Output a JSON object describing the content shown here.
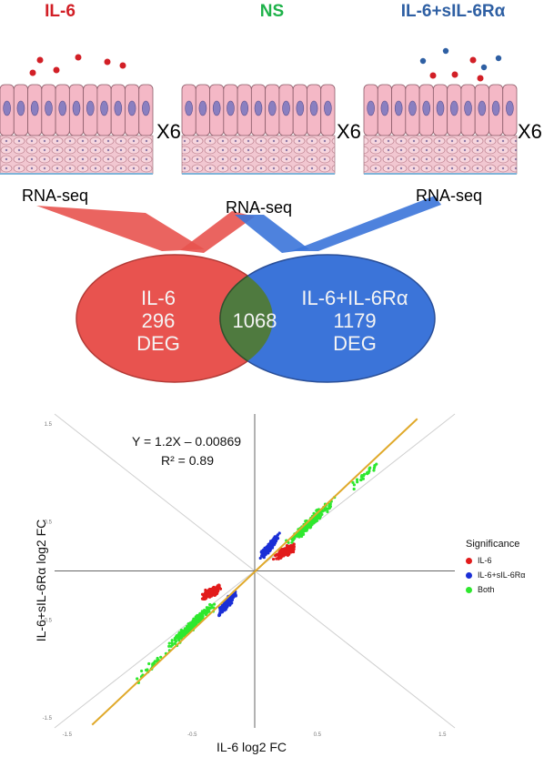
{
  "titles": {
    "left": "IL-6",
    "middle": "NS",
    "right": "IL-6+sIL-6Rα"
  },
  "multiplier": [
    "X6",
    "X6",
    "X6"
  ],
  "rnaseq": [
    "RNA-seq",
    "RNA-seq",
    "RNA-seq"
  ],
  "venn": {
    "left_lines": [
      "IL-6",
      "296",
      "DEG"
    ],
    "overlap": "1068",
    "right_lines": [
      "IL-6+IL-6Rα",
      "1179",
      "DEG"
    ]
  },
  "colors": {
    "il6": "#d21f26",
    "ns": "#1fb24a",
    "il6_sil6ra": "#2e5fa3",
    "venn_left": "#e8534f",
    "venn_right": "#3b74d9",
    "venn_overlap": "#4f7a3f",
    "fit_line": "#e0a92a"
  },
  "chart_data": {
    "type": "scatter",
    "xlabel": "IL-6 log2 FC",
    "ylabel": "IL-6+sIL-6Rα log2 FC",
    "x_ticks": [
      "-1.5",
      "-0.5",
      "0.5",
      "1.5"
    ],
    "y_ticks": [
      "1.5",
      "0.5",
      "-0.5",
      "-1.5"
    ],
    "xlim": [
      -1.6,
      1.6
    ],
    "ylim": [
      -1.6,
      1.6
    ],
    "equation": "Y = 1.2X – 0.00869",
    "r2": "R² = 0.89",
    "legend_title": "Significance",
    "series": [
      {
        "name": "IL-6",
        "color": "#e21b1b",
        "cluster_centers": [
          [
            0.22,
            0.2
          ],
          [
            -0.33,
            -0.25
          ]
        ]
      },
      {
        "name": "IL-6+sIL-6Rα",
        "color": "#1b2fd6",
        "cluster_centers": [
          [
            0.12,
            0.24
          ],
          [
            -0.22,
            -0.32
          ]
        ]
      },
      {
        "name": "Both",
        "color": "#2ee82e",
        "cluster_centers": [
          [
            0.45,
            0.5
          ],
          [
            -0.55,
            -0.6
          ]
        ]
      }
    ],
    "fit": {
      "slope": 1.2,
      "intercept": -0.00869
    }
  }
}
